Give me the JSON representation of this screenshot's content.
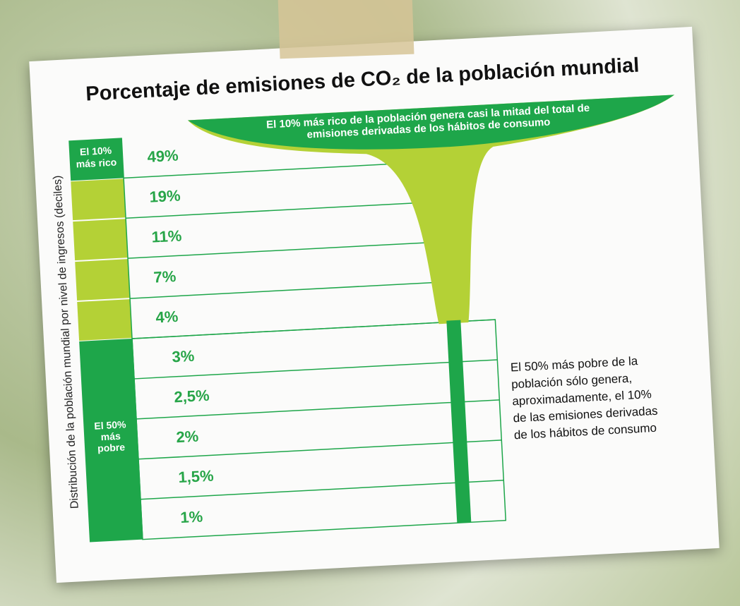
{
  "title": "Porcentaje de emisiones de CO₂ de la población mundial",
  "y_axis_label": "Distribución de la población mundial por nivel de ingresos (deciles)",
  "groups": {
    "top": [
      "El 10%",
      "más rico"
    ],
    "bottom": [
      "El 50%",
      "más",
      "pobre"
    ]
  },
  "rows": [
    "49%",
    "19%",
    "11%",
    "7%",
    "4%",
    "3%",
    "2,5%",
    "2%",
    "1,5%",
    "1%"
  ],
  "annotations": {
    "top": [
      "El 10% más rico de la población genera casi la mitad del total de",
      "emisiones derivadas de los hábitos de consumo"
    ],
    "bottom": [
      "El 50% más pobre de la",
      "población sólo genera,",
      "aproximadamente, el 10%",
      "de las emisiones derivadas",
      "de los hábitos de consumo"
    ]
  }
}
